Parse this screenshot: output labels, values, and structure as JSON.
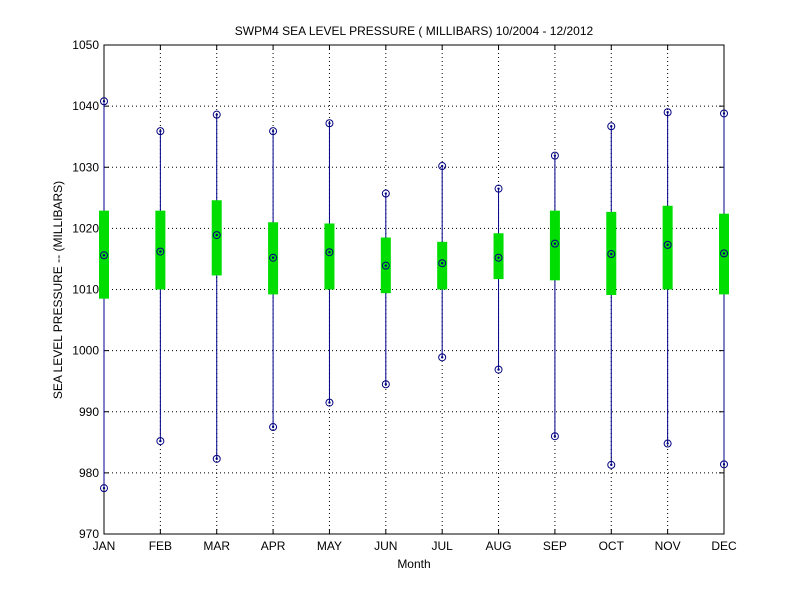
{
  "chart_data": {
    "type": "box",
    "title": "SWPM4  SEA LEVEL PRESSURE ( MILLIBARS) 10/2004 - 12/2012",
    "xlabel": "Month",
    "ylabel": "SEA LEVEL PRESSURE -- (MILLIBARS)",
    "ylim": [
      970,
      1050
    ],
    "yticks": [
      970,
      980,
      990,
      1000,
      1010,
      1020,
      1030,
      1040,
      1050
    ],
    "grid": true,
    "categories": [
      "JAN",
      "FEB",
      "MAR",
      "APR",
      "MAY",
      "JUN",
      "JUL",
      "AUG",
      "SEP",
      "OCT",
      "NOV",
      "DEC"
    ],
    "series": [
      {
        "values": {
          "min": [
            977.5,
            985.2,
            982.3,
            987.5,
            991.5,
            994.5,
            998.9,
            996.9,
            986.0,
            981.3,
            984.8,
            981.4
          ],
          "q1": [
            1008.5,
            1010.0,
            1012.3,
            1009.2,
            1010.0,
            1009.4,
            1010.0,
            1011.7,
            1011.5,
            1009.1,
            1010.0,
            1009.2
          ],
          "median": [
            1015.6,
            1016.2,
            1018.9,
            1015.2,
            1016.1,
            1013.9,
            1014.3,
            1015.2,
            1017.5,
            1015.8,
            1017.3,
            1015.9
          ],
          "q3": [
            1022.9,
            1022.9,
            1024.6,
            1021.0,
            1020.8,
            1018.5,
            1017.8,
            1019.2,
            1022.9,
            1022.7,
            1023.7,
            1022.4
          ],
          "max": [
            1040.8,
            1035.9,
            1038.6,
            1035.9,
            1037.2,
            1025.7,
            1030.2,
            1026.5,
            1031.9,
            1036.7,
            1039.0,
            1038.8
          ]
        }
      }
    ],
    "colors": {
      "whisker": "#00008b",
      "box": "#00dd00",
      "marker": "#000080",
      "grid": "#000000"
    }
  }
}
